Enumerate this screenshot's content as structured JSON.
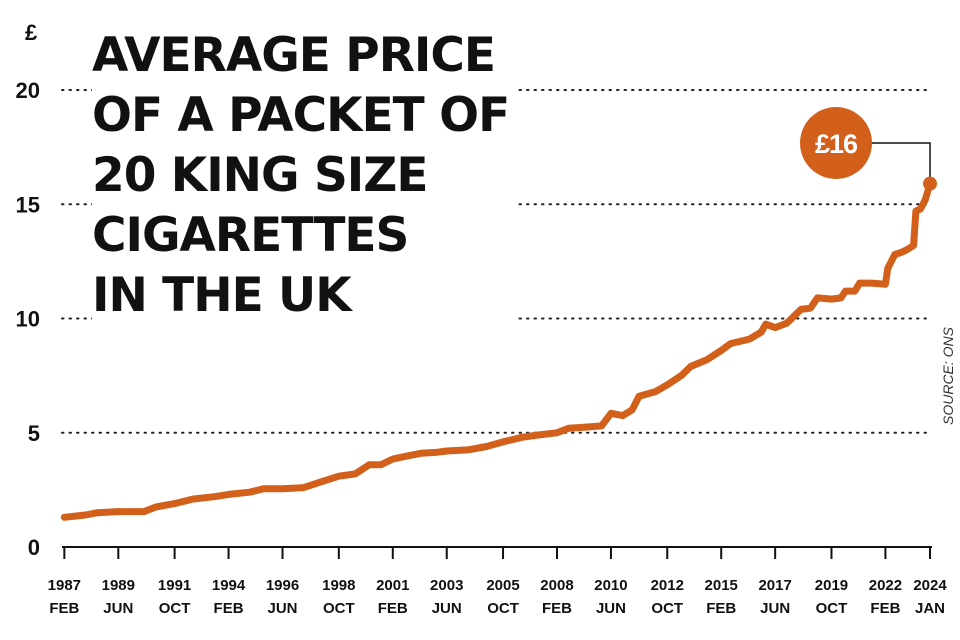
{
  "chart_data": {
    "type": "line",
    "title": "AVERAGE PRICE\nOF A PACKET OF\n20 KING SIZE\nCIGARETTES\nIN THE UK",
    "ylabel": "£",
    "ylim": [
      0,
      20
    ],
    "yticks": [
      "0",
      "5",
      "10",
      "15",
      "20"
    ],
    "xlim": [
      1987.0,
      2024.0
    ],
    "grid": "horizontal-dotted",
    "source": "SOURCE: ONS",
    "colors": {
      "line": "#d2601a",
      "callout": "#d2601a",
      "text": "#111111"
    },
    "xticks": [
      {
        "x": 1987.1,
        "year": "1987",
        "month": "FEB"
      },
      {
        "x": 1989.4,
        "year": "1989",
        "month": "JUN"
      },
      {
        "x": 1991.8,
        "year": "1991",
        "month": "OCT"
      },
      {
        "x": 1994.1,
        "year": "1994",
        "month": "FEB"
      },
      {
        "x": 1996.4,
        "year": "1996",
        "month": "JUN"
      },
      {
        "x": 1998.8,
        "year": "1998",
        "month": "OCT"
      },
      {
        "x": 2001.1,
        "year": "2001",
        "month": "FEB"
      },
      {
        "x": 2003.4,
        "year": "2003",
        "month": "JUN"
      },
      {
        "x": 2005.8,
        "year": "2005",
        "month": "OCT"
      },
      {
        "x": 2008.1,
        "year": "2008",
        "month": "FEB"
      },
      {
        "x": 2010.4,
        "year": "2010",
        "month": "JUN"
      },
      {
        "x": 2012.8,
        "year": "2012",
        "month": "OCT"
      },
      {
        "x": 2015.1,
        "year": "2015",
        "month": "FEB"
      },
      {
        "x": 2017.4,
        "year": "2017",
        "month": "JUN"
      },
      {
        "x": 2019.8,
        "year": "2019",
        "month": "OCT"
      },
      {
        "x": 2022.1,
        "year": "2022",
        "month": "FEB"
      },
      {
        "x": 2024.0,
        "year": "2024",
        "month": "JAN"
      }
    ],
    "series": [
      {
        "points": [
          [
            1987.1,
            1.3
          ],
          [
            1988.0,
            1.4
          ],
          [
            1988.5,
            1.5
          ],
          [
            1989.4,
            1.55
          ],
          [
            1990.5,
            1.55
          ],
          [
            1991.0,
            1.75
          ],
          [
            1991.8,
            1.9
          ],
          [
            1992.6,
            2.1
          ],
          [
            1993.5,
            2.2
          ],
          [
            1994.1,
            2.3
          ],
          [
            1995.0,
            2.4
          ],
          [
            1995.6,
            2.55
          ],
          [
            1996.4,
            2.55
          ],
          [
            1997.3,
            2.6
          ],
          [
            1998.2,
            2.9
          ],
          [
            1998.8,
            3.1
          ],
          [
            1999.5,
            3.2
          ],
          [
            2000.1,
            3.6
          ],
          [
            2000.6,
            3.6
          ],
          [
            2001.1,
            3.85
          ],
          [
            2001.8,
            4.0
          ],
          [
            2002.3,
            4.1
          ],
          [
            2003.0,
            4.15
          ],
          [
            2003.4,
            4.2
          ],
          [
            2004.3,
            4.25
          ],
          [
            2005.1,
            4.4
          ],
          [
            2005.8,
            4.6
          ],
          [
            2006.6,
            4.8
          ],
          [
            2007.3,
            4.9
          ],
          [
            2008.1,
            5.0
          ],
          [
            2008.6,
            5.2
          ],
          [
            2009.4,
            5.25
          ],
          [
            2010.0,
            5.3
          ],
          [
            2010.4,
            5.85
          ],
          [
            2010.9,
            5.75
          ],
          [
            2011.3,
            6.0
          ],
          [
            2011.6,
            6.6
          ],
          [
            2012.3,
            6.8
          ],
          [
            2012.8,
            7.1
          ],
          [
            2013.4,
            7.5
          ],
          [
            2013.8,
            7.9
          ],
          [
            2014.5,
            8.2
          ],
          [
            2015.1,
            8.6
          ],
          [
            2015.5,
            8.9
          ],
          [
            2016.3,
            9.1
          ],
          [
            2016.8,
            9.4
          ],
          [
            2017.0,
            9.75
          ],
          [
            2017.4,
            9.6
          ],
          [
            2017.9,
            9.8
          ],
          [
            2018.2,
            10.1
          ],
          [
            2018.5,
            10.4
          ],
          [
            2018.9,
            10.45
          ],
          [
            2019.2,
            10.9
          ],
          [
            2019.8,
            10.85
          ],
          [
            2020.2,
            10.9
          ],
          [
            2020.4,
            11.2
          ],
          [
            2020.8,
            11.2
          ],
          [
            2021.0,
            11.55
          ],
          [
            2021.5,
            11.55
          ],
          [
            2022.1,
            11.5
          ],
          [
            2022.2,
            12.2
          ],
          [
            2022.5,
            12.8
          ],
          [
            2022.8,
            12.9
          ],
          [
            2023.0,
            13.0
          ],
          [
            2023.3,
            13.2
          ],
          [
            2023.4,
            14.7
          ],
          [
            2023.6,
            14.8
          ],
          [
            2023.8,
            15.2
          ],
          [
            2024.0,
            15.9
          ]
        ]
      }
    ],
    "callout": {
      "x": 2024.0,
      "y": 15.9,
      "label": "£16"
    }
  }
}
